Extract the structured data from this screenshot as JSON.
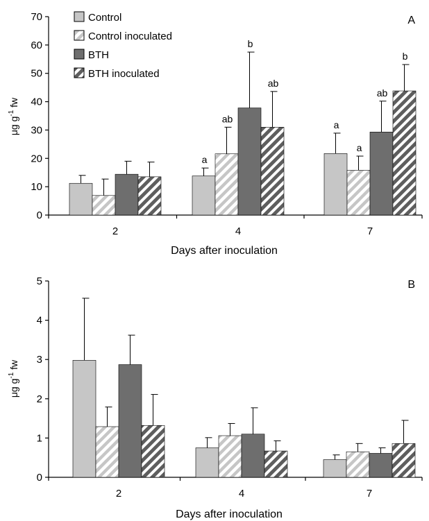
{
  "colors": {
    "control": "#c6c6c6",
    "bth": "#6e6e6e",
    "axis": "#000000",
    "error_bar": "#000000"
  },
  "chart_data": [
    {
      "type": "bar",
      "panel_label": "A",
      "xlabel": "Days after inoculation",
      "ylabel_main": "μg g",
      "ylabel_sup": "-1",
      "ylabel_tail": " fw",
      "ylim": [
        0,
        70
      ],
      "y_ticks": [
        0,
        10,
        20,
        30,
        40,
        50,
        60,
        70
      ],
      "categories": [
        "2",
        "4",
        "7"
      ],
      "legend": {
        "position": "top-left"
      },
      "series": [
        {
          "name": "Control",
          "pattern": "solid-light",
          "values": [
            11.2,
            13.8,
            21.7
          ],
          "errors": [
            2.8,
            2.8,
            7.2
          ],
          "annotations": [
            "",
            "a",
            "a"
          ]
        },
        {
          "name": "Control inoculated",
          "pattern": "hatched-light",
          "values": [
            6.9,
            21.6,
            15.8
          ],
          "errors": [
            5.8,
            9.4,
            5.0
          ],
          "annotations": [
            "",
            "ab",
            "a"
          ]
        },
        {
          "name": "BTH",
          "pattern": "solid-dark",
          "values": [
            14.4,
            37.8,
            29.3
          ],
          "errors": [
            4.6,
            19.7,
            10.9
          ],
          "annotations": [
            "",
            "b",
            "ab"
          ]
        },
        {
          "name": "BTH inoculated",
          "pattern": "hatched-dark",
          "values": [
            13.5,
            31.0,
            43.8
          ],
          "errors": [
            5.2,
            12.6,
            9.3
          ],
          "annotations": [
            "",
            "ab",
            "b"
          ]
        }
      ]
    },
    {
      "type": "bar",
      "panel_label": "B",
      "xlabel": "Days after inoculation",
      "ylabel_main": "μg g",
      "ylabel_sup": "-1",
      "ylabel_tail": " fw",
      "ylim": [
        0,
        5
      ],
      "y_ticks": [
        0,
        1,
        2,
        3,
        4,
        5
      ],
      "categories": [
        "2",
        "4",
        "7"
      ],
      "series": [
        {
          "name": "Control",
          "pattern": "solid-light",
          "values": [
            2.98,
            0.75,
            0.45
          ],
          "errors": [
            1.58,
            0.26,
            0.12
          ]
        },
        {
          "name": "Control inoculated",
          "pattern": "hatched-light",
          "values": [
            1.29,
            1.06,
            0.65
          ],
          "errors": [
            0.5,
            0.31,
            0.21
          ]
        },
        {
          "name": "BTH",
          "pattern": "solid-dark",
          "values": [
            2.87,
            1.1,
            0.61
          ],
          "errors": [
            0.75,
            0.67,
            0.14
          ]
        },
        {
          "name": "BTH inoculated",
          "pattern": "hatched-dark",
          "values": [
            1.32,
            0.67,
            0.86
          ],
          "errors": [
            0.79,
            0.26,
            0.59
          ]
        }
      ]
    }
  ]
}
